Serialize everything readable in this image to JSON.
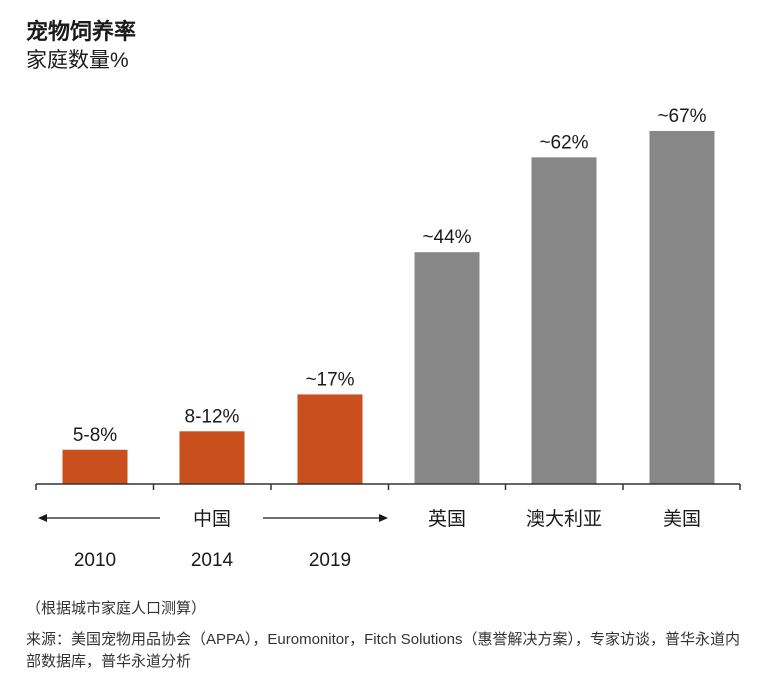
{
  "title": "宠物饲养率",
  "subtitle": "家庭数量%",
  "chart_data": {
    "type": "bar",
    "categories": [
      "2010",
      "2014",
      "2019",
      "英国",
      "澳大利亚",
      "美国"
    ],
    "values": [
      6.5,
      10,
      17,
      44,
      62,
      67
    ],
    "data_labels": [
      "5-8%",
      "8-12%",
      "~17%",
      "~44%",
      "~62%",
      "~67%"
    ],
    "group_label": "中国",
    "ylim": [
      0,
      67
    ],
    "colors": [
      "#c94f1c",
      "#c94f1c",
      "#c94f1c",
      "#878787",
      "#878787",
      "#878787"
    ],
    "xlabel": "",
    "ylabel": ""
  },
  "footnote": "（根据城市家庭人口测算）",
  "source": "来源：美国宠物用品协会（APPA），Euromonitor，Fitch Solutions（惠誉解决方案），专家访谈，普华永道内部数据库，普华永道分析"
}
